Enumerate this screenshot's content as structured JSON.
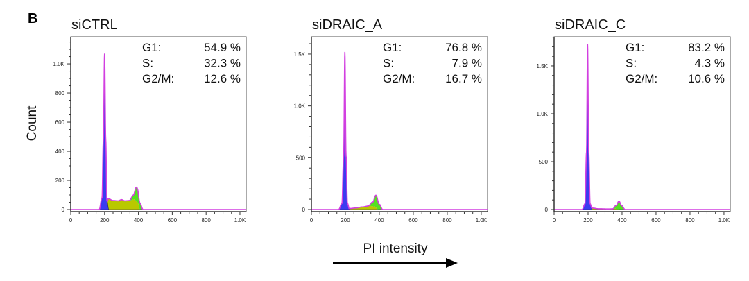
{
  "figure": {
    "panel_letter": "B",
    "ylabel": "Count",
    "xlabel": "PI intensity"
  },
  "colors": {
    "G1": "#3b3bf0",
    "S": "#b9c800",
    "G2": "#55e022",
    "envelope": "#d23fe0",
    "axis": "#333333"
  },
  "chart_data": [
    {
      "type": "area",
      "title": "siCTRL",
      "xlim": [
        0,
        1037
      ],
      "ylim": [
        0,
        1186
      ],
      "xticks": [
        0,
        200,
        400,
        600,
        800,
        1000
      ],
      "xtick_labels": [
        "0",
        "200",
        "400",
        "600",
        "800",
        "1.0K"
      ],
      "yticks": [
        0,
        200,
        400,
        600,
        800,
        1000
      ],
      "ytick_labels": [
        "0",
        "200",
        "400",
        "600",
        "800",
        "1.0K"
      ],
      "stats": [
        {
          "label": "G1:",
          "value": "54.9 %"
        },
        {
          "label": "S:",
          "value": "32.3 %"
        },
        {
          "label": "G2/M:",
          "value": "12.6 %"
        }
      ],
      "series": [
        {
          "name": "G1",
          "x": [
            168,
            185,
            193,
            200,
            207,
            214,
            225
          ],
          "y": [
            0,
            80,
            480,
            1070,
            480,
            60,
            0
          ]
        },
        {
          "name": "S",
          "x": [
            200,
            212,
            222,
            250,
            280,
            300,
            320,
            350,
            375,
            395,
            410
          ],
          "y": [
            0,
            40,
            75,
            62,
            60,
            68,
            60,
            62,
            70,
            50,
            0
          ]
        },
        {
          "name": "G2",
          "x": [
            345,
            370,
            390,
            408,
            428
          ],
          "y": [
            0,
            30,
            100,
            45,
            0
          ]
        }
      ]
    },
    {
      "type": "area",
      "title": "siDRAIC_A",
      "xlim": [
        0,
        1037
      ],
      "ylim": [
        0,
        1667
      ],
      "xticks": [
        0,
        200,
        400,
        600,
        800,
        1000
      ],
      "xtick_labels": [
        "0",
        "200",
        "400",
        "600",
        "800",
        "1.0K"
      ],
      "yticks": [
        0,
        500,
        1000,
        1500
      ],
      "ytick_labels": [
        "0",
        "500",
        "1.0K",
        "1.5K"
      ],
      "stats": [
        {
          "label": "G1:",
          "value": "76.8 %"
        },
        {
          "label": "S:",
          "value": "7.9 %"
        },
        {
          "label": "G2/M:",
          "value": "16.7 %"
        }
      ],
      "series": [
        {
          "name": "G1",
          "x": [
            160,
            180,
            190,
            197,
            204,
            212,
            225
          ],
          "y": [
            0,
            60,
            520,
            1520,
            520,
            60,
            0
          ]
        },
        {
          "name": "S",
          "x": [
            205,
            225,
            260,
            300,
            340,
            370,
            395
          ],
          "y": [
            0,
            10,
            15,
            25,
            35,
            30,
            0
          ]
        },
        {
          "name": "G2",
          "x": [
            335,
            360,
            382,
            400,
            420
          ],
          "y": [
            0,
            40,
            120,
            50,
            0
          ]
        }
      ]
    },
    {
      "type": "area",
      "title": "siDRAIC_C",
      "xlim": [
        0,
        1037
      ],
      "ylim": [
        0,
        1804
      ],
      "xticks": [
        0,
        200,
        400,
        600,
        800,
        1000
      ],
      "xtick_labels": [
        "0",
        "200",
        "400",
        "600",
        "800",
        "1.0K"
      ],
      "yticks": [
        0,
        500,
        1000,
        1500
      ],
      "ytick_labels": [
        "0",
        "500",
        "1.0K",
        "1.5K"
      ],
      "stats": [
        {
          "label": "G1:",
          "value": "83.2 %"
        },
        {
          "label": "S:",
          "value": "4.3 %"
        },
        {
          "label": "G2/M:",
          "value": "10.6 %"
        }
      ],
      "series": [
        {
          "name": "G1",
          "x": [
            165,
            182,
            191,
            197,
            204,
            212,
            225
          ],
          "y": [
            0,
            60,
            600,
            1730,
            600,
            60,
            0
          ]
        },
        {
          "name": "S",
          "x": [
            205,
            215,
            230,
            260,
            320,
            360,
            385
          ],
          "y": [
            0,
            20,
            15,
            8,
            6,
            8,
            0
          ]
        },
        {
          "name": "G2",
          "x": [
            345,
            365,
            382,
            398,
            418
          ],
          "y": [
            0,
            35,
            88,
            40,
            0
          ]
        }
      ]
    }
  ]
}
